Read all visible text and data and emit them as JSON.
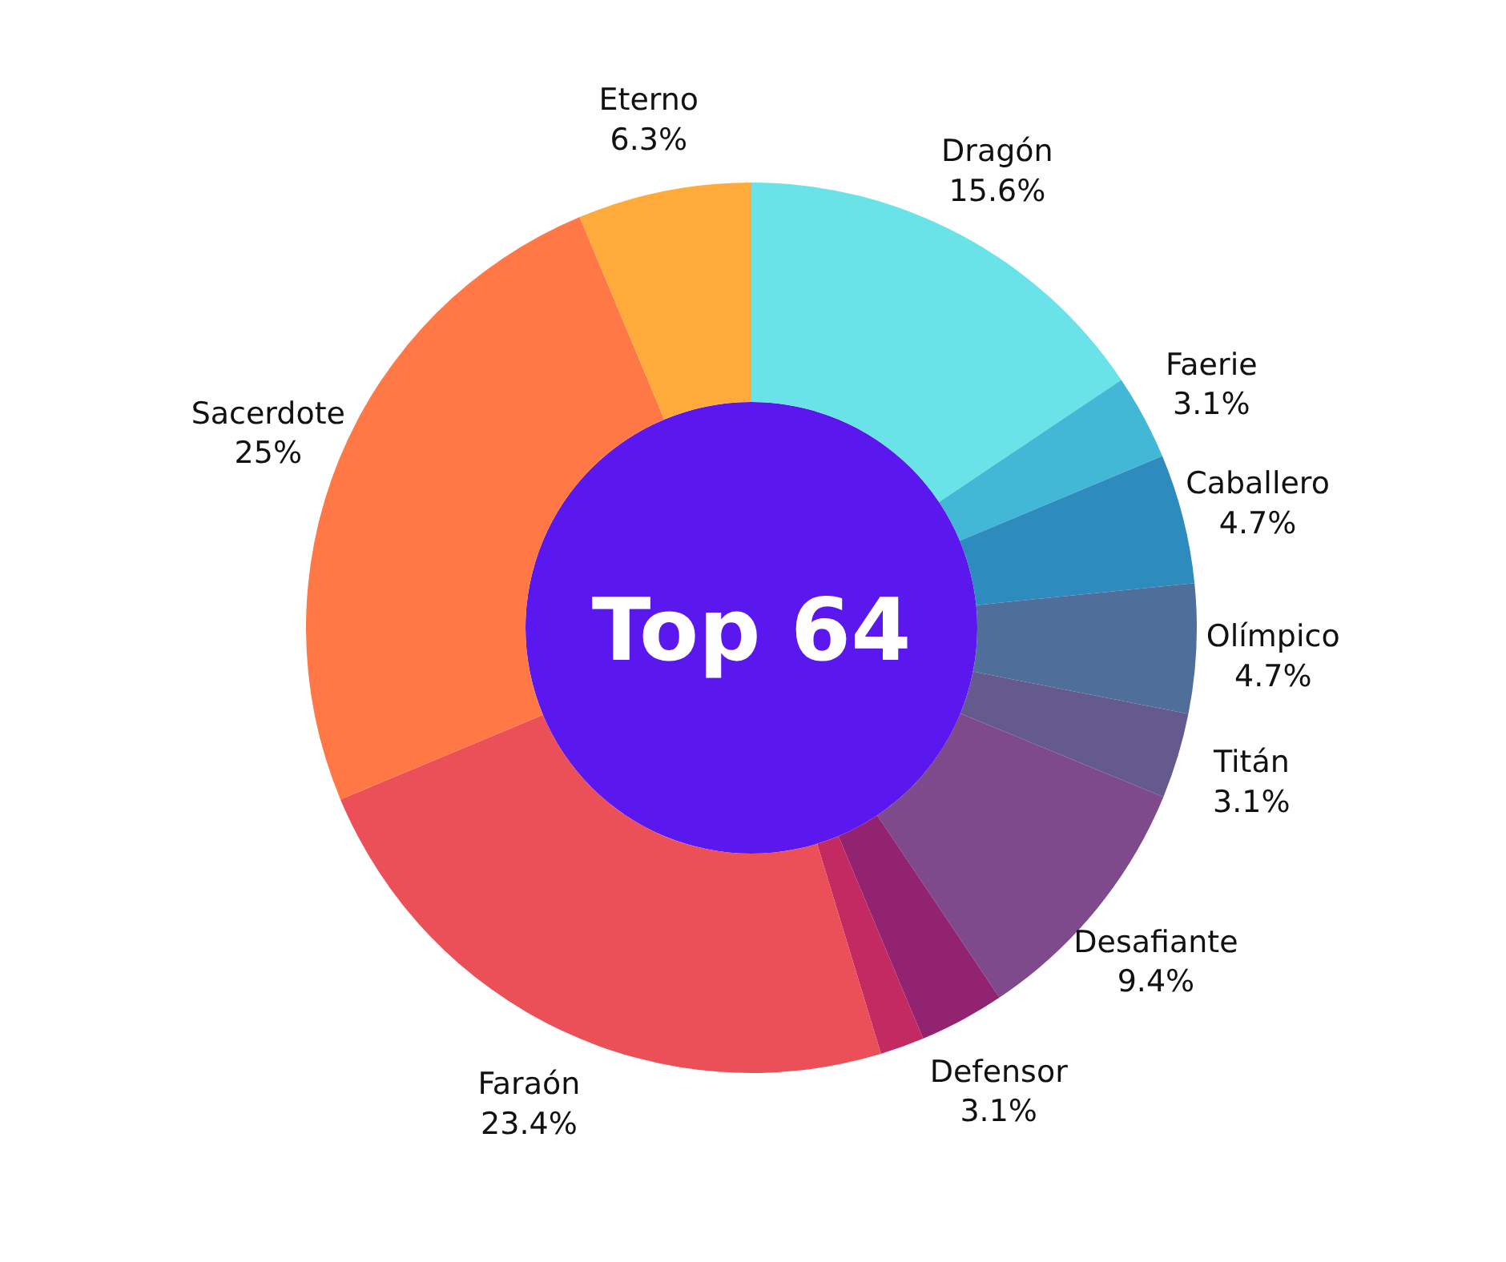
{
  "chart_data": {
    "type": "donut",
    "title": "Top 64",
    "categories": [
      "Dragón",
      "Faerie",
      "Caballero",
      "Olímpico",
      "Titán",
      "Desafiante",
      "Defensor",
      null,
      "Faraón",
      "Sacerdote",
      "Eterno"
    ],
    "values": [
      15.6,
      3.1,
      4.7,
      4.7,
      3.1,
      9.4,
      3.1,
      1.6,
      23.4,
      25,
      6.3
    ],
    "colors": [
      "#6ae3e8",
      "#43b8d6",
      "#2e8bbd",
      "#4f6e9a",
      "#645a8e",
      "#7f4a8c",
      "#922371",
      "#c42a62",
      "#eb5058",
      "#ff7845",
      "#ffab3c"
    ],
    "value_labels": [
      "15.6%",
      "3.1%",
      "4.7%",
      "4.7%",
      "3.1%",
      "9.4%",
      "3.1%",
      null,
      "23.4%",
      "25%",
      "6.3%"
    ]
  }
}
